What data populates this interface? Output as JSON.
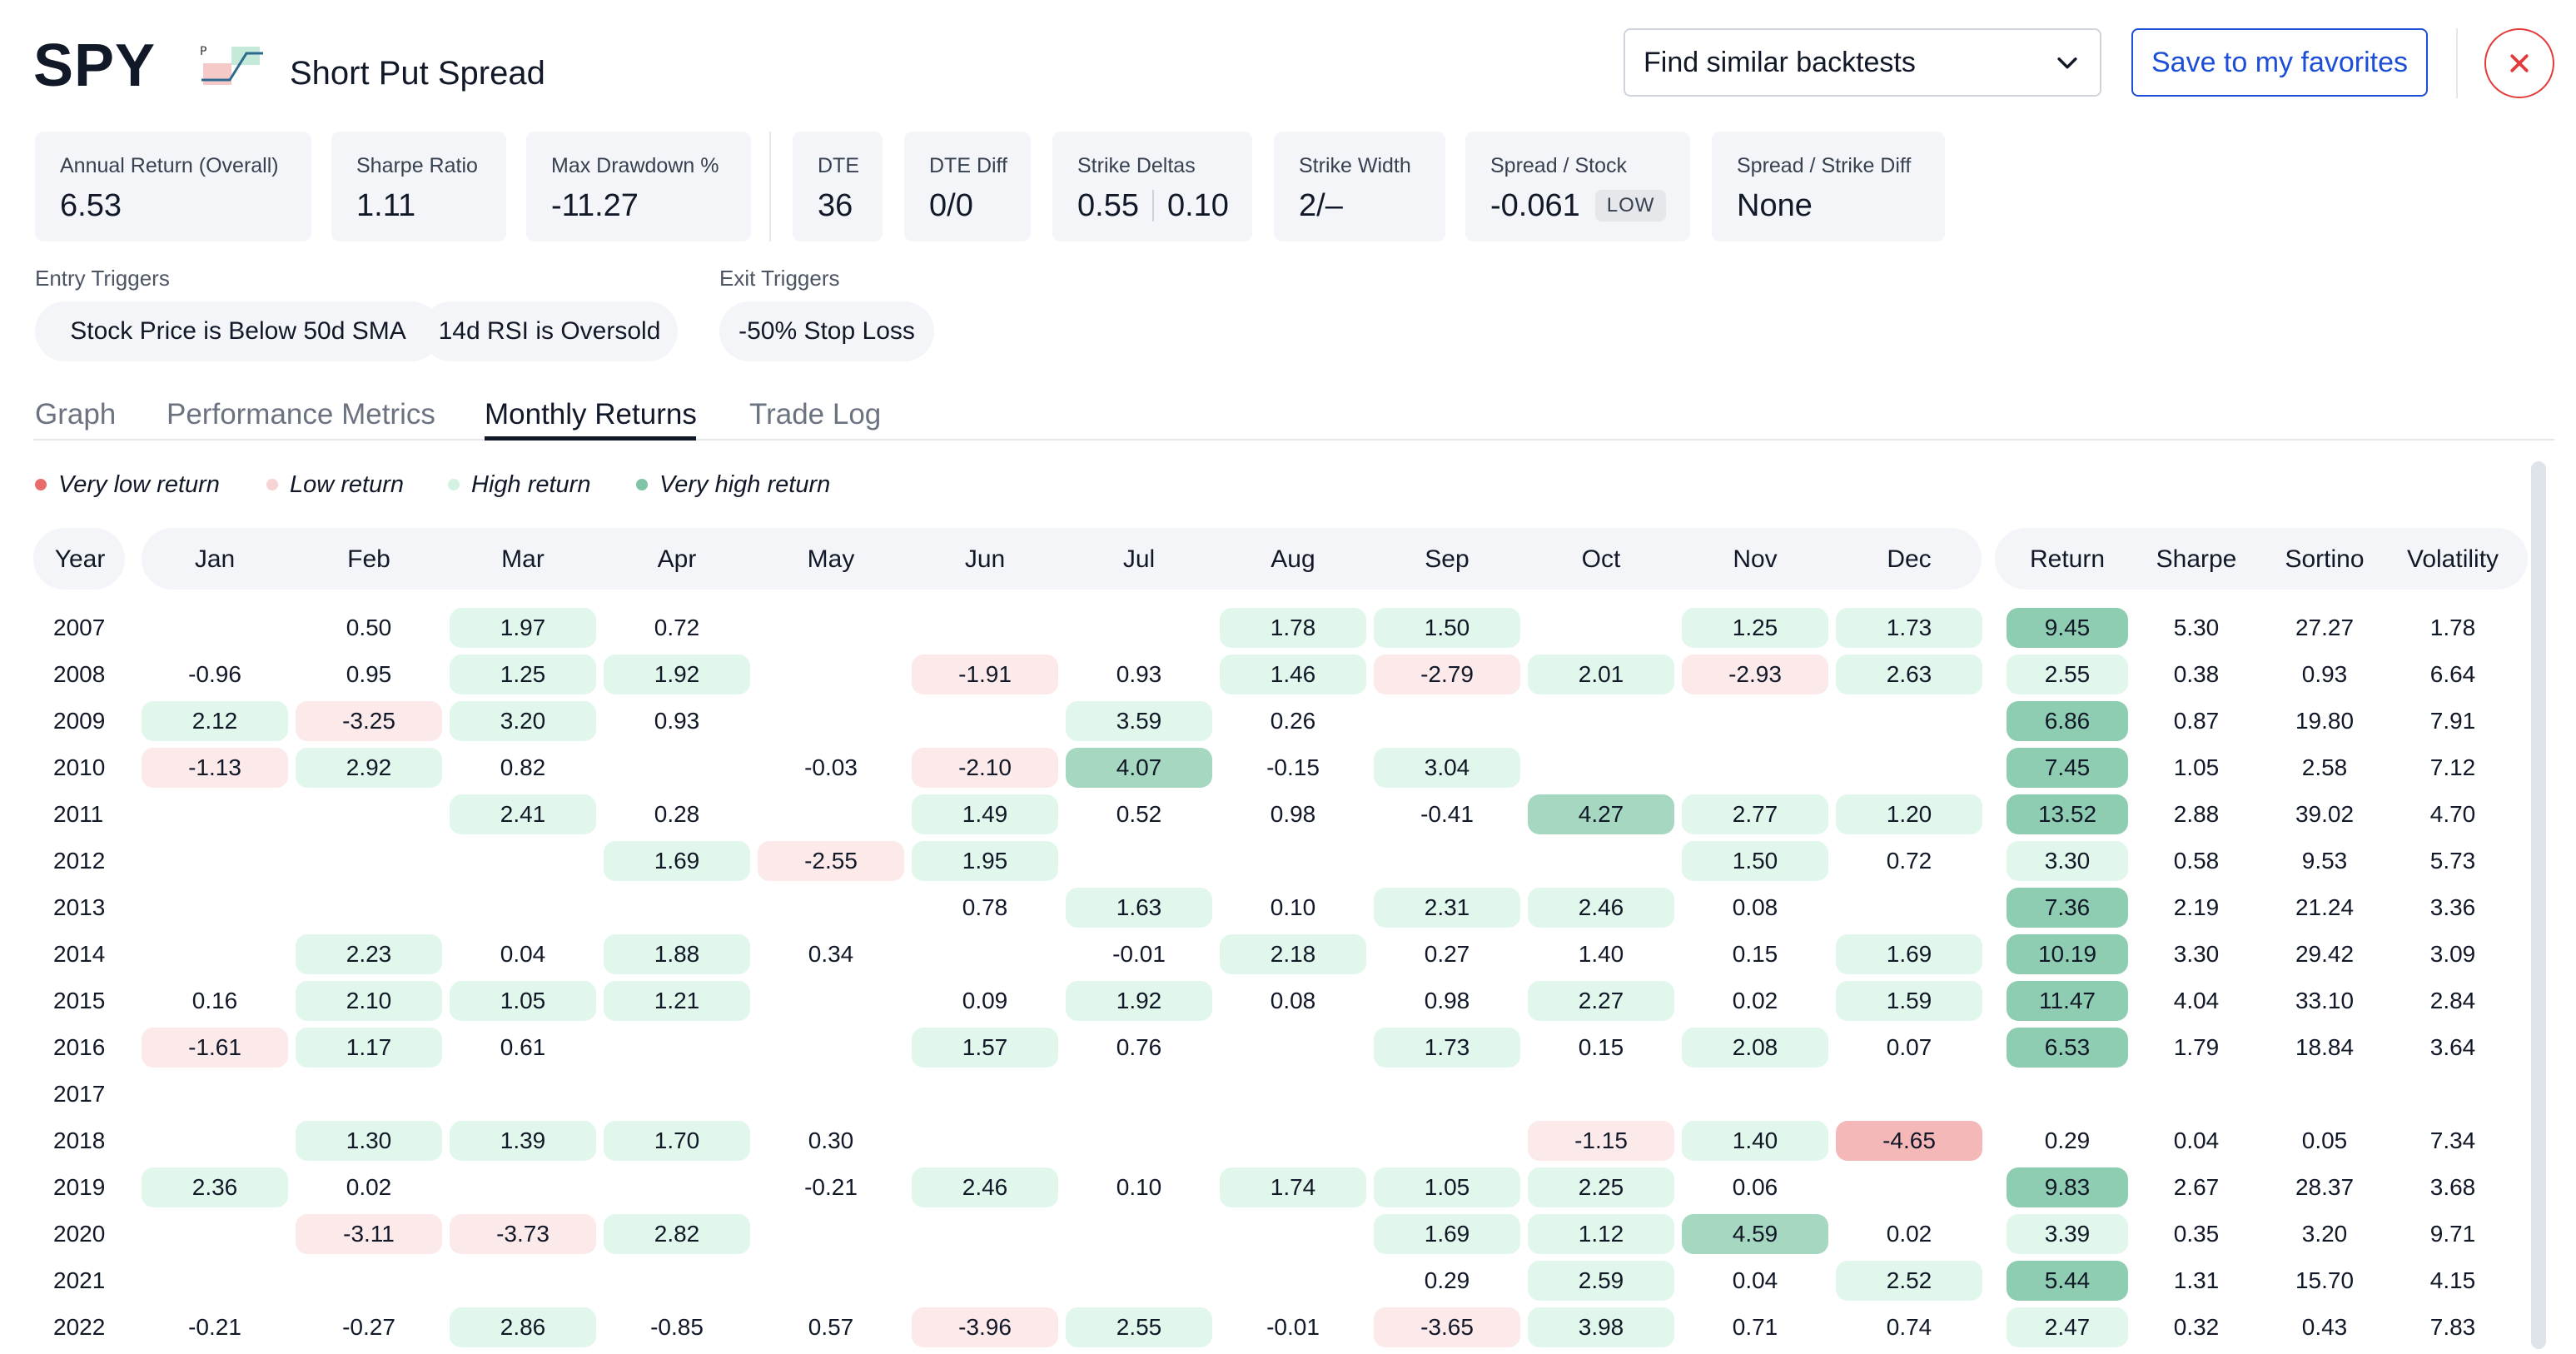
{
  "header": {
    "ticker": "SPY",
    "strategy_icon_label": "P",
    "strategy_name": "Short Put Spread",
    "similar_label": "Find similar backtests",
    "favorites_label": "Save to my favorites"
  },
  "stats": {
    "annual_return": {
      "label": "Annual Return (Overall)",
      "value": "6.53"
    },
    "sharpe": {
      "label": "Sharpe Ratio",
      "value": "1.11"
    },
    "max_drawdown": {
      "label": "Max Drawdown %",
      "value": "-11.27"
    },
    "dte": {
      "label": "DTE",
      "value": "36"
    },
    "dte_diff": {
      "label": "DTE Diff",
      "value": "0/0"
    },
    "strike_deltas": {
      "label": "Strike Deltas",
      "value_a": "0.55",
      "value_b": "0.10"
    },
    "strike_width": {
      "label": "Strike Width",
      "value": "2/–"
    },
    "spread_stock": {
      "label": "Spread / Stock",
      "value": "-0.061",
      "badge": "LOW"
    },
    "spread_strike_diff": {
      "label": "Spread / Strike Diff",
      "value": "None"
    }
  },
  "triggers": {
    "entry_title": "Entry Triggers",
    "entry": [
      "Stock Price is Below 50d SMA",
      "14d RSI is Oversold"
    ],
    "exit_title": "Exit Triggers",
    "exit": [
      "-50% Stop Loss"
    ]
  },
  "tabs": [
    "Graph",
    "Performance Metrics",
    "Monthly Returns",
    "Trade Log"
  ],
  "active_tab": "Monthly Returns",
  "legend": [
    {
      "label": "Very low return",
      "color": "#e86c6c"
    },
    {
      "label": "Low return",
      "color": "#f8d3d3"
    },
    {
      "label": "High return",
      "color": "#d3f2e2"
    },
    {
      "label": "Very high return",
      "color": "#7fc4a6"
    }
  ],
  "table": {
    "year_header": "Year",
    "months": [
      "Jan",
      "Feb",
      "Mar",
      "Apr",
      "May",
      "Jun",
      "Jul",
      "Aug",
      "Sep",
      "Oct",
      "Nov",
      "Dec"
    ],
    "summary_headers": [
      "Return",
      "Sharpe",
      "Sortino",
      "Volatility"
    ],
    "rows": [
      {
        "year": "2007",
        "months": [
          "",
          "0.50",
          "1.97",
          "0.72",
          "",
          "",
          "",
          "1.78",
          "1.50",
          "",
          "1.25",
          "1.73"
        ],
        "tones": [
          "",
          "",
          "h",
          "",
          "",
          "",
          "",
          "h",
          "h",
          "",
          "h",
          "h"
        ],
        "ret": "9.45",
        "ret_tone": "vh",
        "sharpe": "5.30",
        "sortino": "27.27",
        "volatility": "1.78"
      },
      {
        "year": "2008",
        "months": [
          "-0.96",
          "0.95",
          "1.25",
          "1.92",
          "",
          "-1.91",
          "0.93",
          "1.46",
          "-2.79",
          "2.01",
          "-2.93",
          "2.63"
        ],
        "tones": [
          "",
          "",
          "h",
          "h",
          "",
          "l",
          "",
          "h",
          "l",
          "h",
          "l",
          "h"
        ],
        "ret": "2.55",
        "ret_tone": "h",
        "sharpe": "0.38",
        "sortino": "0.93",
        "volatility": "6.64"
      },
      {
        "year": "2009",
        "months": [
          "2.12",
          "-3.25",
          "3.20",
          "0.93",
          "",
          "",
          "3.59",
          "0.26",
          "",
          "",
          "",
          ""
        ],
        "tones": [
          "h",
          "l",
          "h",
          "",
          "",
          "",
          "h",
          "",
          "",
          "",
          "",
          ""
        ],
        "ret": "6.86",
        "ret_tone": "vh",
        "sharpe": "0.87",
        "sortino": "19.80",
        "volatility": "7.91"
      },
      {
        "year": "2010",
        "months": [
          "-1.13",
          "2.92",
          "0.82",
          "",
          "-0.03",
          "-2.10",
          "4.07",
          "-0.15",
          "3.04",
          "",
          "",
          ""
        ],
        "tones": [
          "l",
          "h",
          "",
          "",
          "",
          "l",
          "vh",
          "",
          "h",
          "",
          "",
          ""
        ],
        "ret": "7.45",
        "ret_tone": "vh",
        "sharpe": "1.05",
        "sortino": "2.58",
        "volatility": "7.12"
      },
      {
        "year": "2011",
        "months": [
          "",
          "",
          "2.41",
          "0.28",
          "",
          "1.49",
          "0.52",
          "0.98",
          "-0.41",
          "4.27",
          "2.77",
          "1.20"
        ],
        "tones": [
          "",
          "",
          "h",
          "",
          "",
          "h",
          "",
          "",
          "",
          "vh",
          "h",
          "h"
        ],
        "ret": "13.52",
        "ret_tone": "vh",
        "sharpe": "2.88",
        "sortino": "39.02",
        "volatility": "4.70"
      },
      {
        "year": "2012",
        "months": [
          "",
          "",
          "",
          "1.69",
          "-2.55",
          "1.95",
          "",
          "",
          "",
          "",
          "1.50",
          "0.72"
        ],
        "tones": [
          "",
          "",
          "",
          "h",
          "l",
          "h",
          "",
          "",
          "",
          "",
          "h",
          ""
        ],
        "ret": "3.30",
        "ret_tone": "h",
        "sharpe": "0.58",
        "sortino": "9.53",
        "volatility": "5.73"
      },
      {
        "year": "2013",
        "months": [
          "",
          "",
          "",
          "",
          "",
          "0.78",
          "1.63",
          "0.10",
          "2.31",
          "2.46",
          "0.08",
          ""
        ],
        "tones": [
          "",
          "",
          "",
          "",
          "",
          "",
          "h",
          "",
          "h",
          "h",
          "",
          ""
        ],
        "ret": "7.36",
        "ret_tone": "vh",
        "sharpe": "2.19",
        "sortino": "21.24",
        "volatility": "3.36"
      },
      {
        "year": "2014",
        "months": [
          "",
          "2.23",
          "0.04",
          "1.88",
          "0.34",
          "",
          "-0.01",
          "2.18",
          "0.27",
          "1.40",
          "0.15",
          "1.69"
        ],
        "tones": [
          "",
          "h",
          "",
          "h",
          "",
          "",
          "",
          "h",
          "",
          "",
          "",
          "h"
        ],
        "ret": "10.19",
        "ret_tone": "vh",
        "sharpe": "3.30",
        "sortino": "29.42",
        "volatility": "3.09"
      },
      {
        "year": "2015",
        "months": [
          "0.16",
          "2.10",
          "1.05",
          "1.21",
          "",
          "0.09",
          "1.92",
          "0.08",
          "0.98",
          "2.27",
          "0.02",
          "1.59"
        ],
        "tones": [
          "",
          "h",
          "h",
          "h",
          "",
          "",
          "h",
          "",
          "",
          "h",
          "",
          "h"
        ],
        "ret": "11.47",
        "ret_tone": "vh",
        "sharpe": "4.04",
        "sortino": "33.10",
        "volatility": "2.84"
      },
      {
        "year": "2016",
        "months": [
          "-1.61",
          "1.17",
          "0.61",
          "",
          "",
          "1.57",
          "0.76",
          "",
          "1.73",
          "0.15",
          "2.08",
          "0.07"
        ],
        "tones": [
          "l",
          "h",
          "",
          "",
          "",
          "h",
          "",
          "",
          "h",
          "",
          "h",
          ""
        ],
        "ret": "6.53",
        "ret_tone": "vh",
        "sharpe": "1.79",
        "sortino": "18.84",
        "volatility": "3.64"
      },
      {
        "year": "2017",
        "months": [
          "",
          "",
          "",
          "",
          "",
          "",
          "",
          "",
          "",
          "",
          "",
          ""
        ],
        "tones": [
          "",
          "",
          "",
          "",
          "",
          "",
          "",
          "",
          "",
          "",
          "",
          ""
        ],
        "ret": "",
        "ret_tone": "",
        "sharpe": "",
        "sortino": "",
        "volatility": ""
      },
      {
        "year": "2018",
        "months": [
          "",
          "1.30",
          "1.39",
          "1.70",
          "0.30",
          "",
          "",
          "",
          "",
          "-1.15",
          "1.40",
          "-4.65"
        ],
        "tones": [
          "",
          "h",
          "h",
          "h",
          "",
          "",
          "",
          "",
          "",
          "l",
          "h",
          "vl"
        ],
        "ret": "0.29",
        "ret_tone": "",
        "sharpe": "0.04",
        "sortino": "0.05",
        "volatility": "7.34"
      },
      {
        "year": "2019",
        "months": [
          "2.36",
          "0.02",
          "",
          "",
          "-0.21",
          "2.46",
          "0.10",
          "1.74",
          "1.05",
          "2.25",
          "0.06",
          ""
        ],
        "tones": [
          "h",
          "",
          "",
          "",
          "",
          "h",
          "",
          "h",
          "h",
          "h",
          "",
          ""
        ],
        "ret": "9.83",
        "ret_tone": "vh",
        "sharpe": "2.67",
        "sortino": "28.37",
        "volatility": "3.68"
      },
      {
        "year": "2020",
        "months": [
          "",
          "-3.11",
          "-3.73",
          "2.82",
          "",
          "",
          "",
          "",
          "1.69",
          "1.12",
          "4.59",
          "0.02"
        ],
        "tones": [
          "",
          "l",
          "l",
          "h",
          "",
          "",
          "",
          "",
          "h",
          "h",
          "vh",
          ""
        ],
        "ret": "3.39",
        "ret_tone": "h",
        "sharpe": "0.35",
        "sortino": "3.20",
        "volatility": "9.71"
      },
      {
        "year": "2021",
        "months": [
          "",
          "",
          "",
          "",
          "",
          "",
          "",
          "",
          "0.29",
          "2.59",
          "0.04",
          "2.52"
        ],
        "tones": [
          "",
          "",
          "",
          "",
          "",
          "",
          "",
          "",
          "",
          "h",
          "",
          "h"
        ],
        "ret": "5.44",
        "ret_tone": "vh",
        "sharpe": "1.31",
        "sortino": "15.70",
        "volatility": "4.15"
      },
      {
        "year": "2022",
        "months": [
          "-0.21",
          "-0.27",
          "2.86",
          "-0.85",
          "0.57",
          "-3.96",
          "2.55",
          "-0.01",
          "-3.65",
          "3.98",
          "0.71",
          "0.74"
        ],
        "tones": [
          "",
          "",
          "h",
          "",
          "",
          "l",
          "h",
          "",
          "l",
          "h",
          "",
          ""
        ],
        "ret": "2.47",
        "ret_tone": "h",
        "sharpe": "0.32",
        "sortino": "0.43",
        "volatility": "7.83"
      }
    ]
  }
}
